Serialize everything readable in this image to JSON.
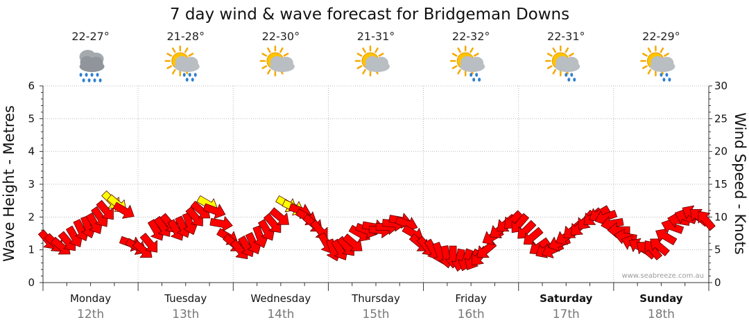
{
  "chart_data": {
    "type": "line",
    "title": "7 day wind & wave forecast for Bridgeman Downs",
    "ylabel_left": "Wave Height - Metres",
    "ylabel_right": "Wind Speed - Knots",
    "ylim_left": [
      0,
      6
    ],
    "ylim_right": [
      0,
      30
    ],
    "yticks_left": [
      "0",
      "1",
      "2",
      "3",
      "4",
      "5",
      "6"
    ],
    "yticks_right": [
      "0",
      "5",
      "10",
      "15",
      "20",
      "25",
      "30"
    ],
    "grid": "dotted",
    "credit": "www.seabreeze.com.au",
    "days": [
      {
        "name": "Monday",
        "date": "12th",
        "temp": "22-27°",
        "icon": "rain-cloud-icon",
        "bold": false
      },
      {
        "name": "Tuesday",
        "date": "13th",
        "temp": "21-28°",
        "icon": "sun-cloud-rain-icon",
        "bold": false
      },
      {
        "name": "Wednesday",
        "date": "14th",
        "temp": "22-30°",
        "icon": "sun-cloud-icon",
        "bold": false
      },
      {
        "name": "Thursday",
        "date": "15th",
        "temp": "21-31°",
        "icon": "sun-cloud-icon",
        "bold": false
      },
      {
        "name": "Friday",
        "date": "16th",
        "temp": "22-32°",
        "icon": "sun-cloud-showers-icon",
        "bold": false
      },
      {
        "name": "Saturday",
        "date": "17th",
        "temp": "22-31°",
        "icon": "sun-cloud-showers-icon",
        "bold": true
      },
      {
        "name": "Sunday",
        "date": "18th",
        "temp": "22-29°",
        "icon": "sun-cloud-showers-icon",
        "bold": true
      }
    ],
    "wind_arrow_colors": {
      "normal": "#ff0000",
      "strong": "#ffff00"
    },
    "wind_series": {
      "name": "Wind Speed - Knots",
      "x_days": [
        0.05,
        0.12,
        0.19,
        0.26,
        0.33,
        0.4,
        0.47,
        0.54,
        0.6,
        0.66,
        0.72,
        0.78,
        0.85,
        0.92,
        0.98,
        1.05,
        1.12,
        1.19,
        1.26,
        1.33,
        1.4,
        1.47,
        1.54,
        1.6,
        1.66,
        1.73,
        1.8,
        1.87,
        1.94,
        2.0,
        2.07,
        2.14,
        2.21,
        2.28,
        2.35,
        2.42,
        2.49,
        2.56,
        2.63,
        2.7,
        2.77,
        2.84,
        2.91,
        2.98,
        3.05,
        3.12,
        3.19,
        3.26,
        3.33,
        3.4,
        3.47,
        3.54,
        3.61,
        3.68,
        3.75,
        3.82,
        3.89,
        3.96,
        4.03,
        4.1,
        4.17,
        4.24,
        4.31,
        4.38,
        4.45,
        4.52,
        4.59,
        4.66,
        4.73,
        4.8,
        4.87,
        4.94,
        5.01,
        5.08,
        5.15,
        5.22,
        5.29,
        5.36,
        5.43,
        5.5,
        5.57,
        5.64,
        5.71,
        5.78,
        5.85,
        5.92,
        5.99,
        6.06,
        6.13,
        6.2,
        6.27,
        6.34,
        6.41,
        6.48,
        6.55,
        6.62,
        6.69,
        6.76,
        6.83,
        6.9,
        6.97
      ],
      "knots": [
        6,
        5.5,
        5,
        6,
        7,
        8,
        8.5,
        9,
        10,
        11,
        12.5,
        12,
        11,
        6,
        5.5,
        5,
        6,
        8,
        8.5,
        9,
        8,
        8.5,
        9,
        10,
        11,
        12,
        11,
        9,
        7,
        6,
        5,
        5.5,
        6,
        7,
        8,
        9,
        10,
        12,
        11.5,
        11,
        10,
        9,
        8,
        6,
        5,
        5,
        5.5,
        6,
        7.5,
        8,
        8.5,
        8,
        8.5,
        9,
        9.5,
        9,
        7.5,
        6,
        5.5,
        5,
        4.5,
        4,
        4,
        3.5,
        3.5,
        3.5,
        4,
        5,
        7,
        8,
        9,
        9.5,
        9,
        8,
        7,
        5.5,
        5,
        5,
        6,
        7,
        8,
        8.5,
        9.5,
        10,
        10.5,
        10,
        9,
        8,
        7,
        6,
        5.5,
        5,
        5,
        5.5,
        7,
        8.5,
        9.5,
        10,
        10.5,
        10,
        9.5
      ],
      "wave_m": [
        1.3,
        1.2,
        1.1,
        1.25,
        1.4,
        1.6,
        1.7,
        1.8,
        2.0,
        2.2,
        2.5,
        2.4,
        2.2,
        1.2,
        1.1,
        1.0,
        1.2,
        1.6,
        1.7,
        1.8,
        1.6,
        1.7,
        1.8,
        2.0,
        2.2,
        2.4,
        2.2,
        1.8,
        1.4,
        1.2,
        1.0,
        1.1,
        1.2,
        1.4,
        1.6,
        1.8,
        2.0,
        2.4,
        2.3,
        2.2,
        2.0,
        1.8,
        1.6,
        1.2,
        1.0,
        1.0,
        1.1,
        1.2,
        1.5,
        1.6,
        1.7,
        1.6,
        1.7,
        1.8,
        1.9,
        1.8,
        1.5,
        1.2,
        1.1,
        1.0,
        0.9,
        0.8,
        0.8,
        0.7,
        0.7,
        0.7,
        0.8,
        1.0,
        1.4,
        1.6,
        1.8,
        1.9,
        1.8,
        1.6,
        1.4,
        1.1,
        1.0,
        1.0,
        1.2,
        1.4,
        1.6,
        1.7,
        1.9,
        2.0,
        2.1,
        2.0,
        1.8,
        1.6,
        1.4,
        1.2,
        1.1,
        1.0,
        1.0,
        1.1,
        1.4,
        1.7,
        1.9,
        2.0,
        2.1,
        2.0,
        1.9
      ],
      "direction_deg": [
        320,
        315,
        310,
        320,
        330,
        335,
        340,
        330,
        325,
        320,
        315,
        310,
        300,
        290,
        300,
        310,
        320,
        330,
        325,
        320,
        330,
        335,
        340,
        320,
        310,
        300,
        290,
        280,
        300,
        310,
        320,
        330,
        335,
        340,
        330,
        320,
        310,
        300,
        295,
        290,
        300,
        310,
        320,
        330,
        340,
        330,
        320,
        310,
        300,
        290,
        280,
        275,
        270,
        275,
        280,
        290,
        300,
        310,
        320,
        330,
        340,
        350,
        0,
        10,
        20,
        30,
        40,
        50,
        60,
        55,
        50,
        45,
        40,
        45,
        50,
        55,
        60,
        65,
        70,
        60,
        50,
        45,
        40,
        50,
        60,
        70,
        80,
        90,
        100,
        110,
        120,
        130,
        140,
        130,
        120,
        110,
        100,
        110,
        120,
        130,
        140
      ]
    }
  }
}
